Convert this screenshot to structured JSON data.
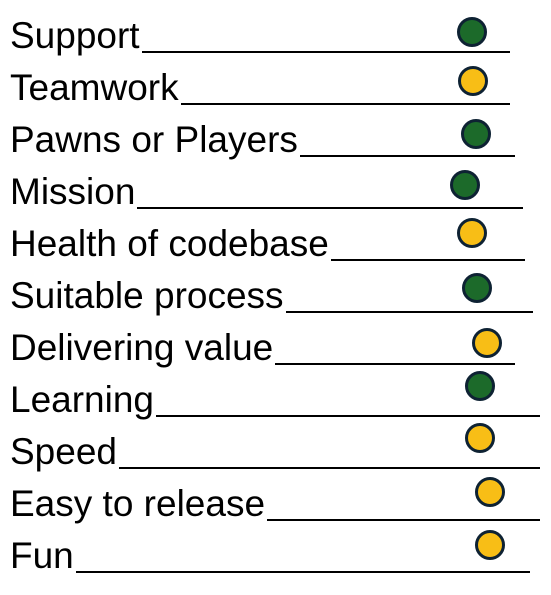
{
  "colors": {
    "green": "#1c6a2a",
    "yellow": "#f8be16",
    "outline": "#0e2233"
  },
  "items": [
    {
      "label": "Support",
      "status": "green"
    },
    {
      "label": "Teamwork",
      "status": "yellow"
    },
    {
      "label": "Pawns or Players",
      "status": "green"
    },
    {
      "label": "Mission",
      "status": "green"
    },
    {
      "label": "Health of codebase",
      "status": "yellow"
    },
    {
      "label": "Suitable process",
      "status": "green"
    },
    {
      "label": "Delivering value",
      "status": "yellow"
    },
    {
      "label": "Learning",
      "status": "green"
    },
    {
      "label": "Speed",
      "status": "yellow"
    },
    {
      "label": "Easy to release",
      "status": "yellow"
    },
    {
      "label": "Fun",
      "status": "yellow"
    }
  ]
}
